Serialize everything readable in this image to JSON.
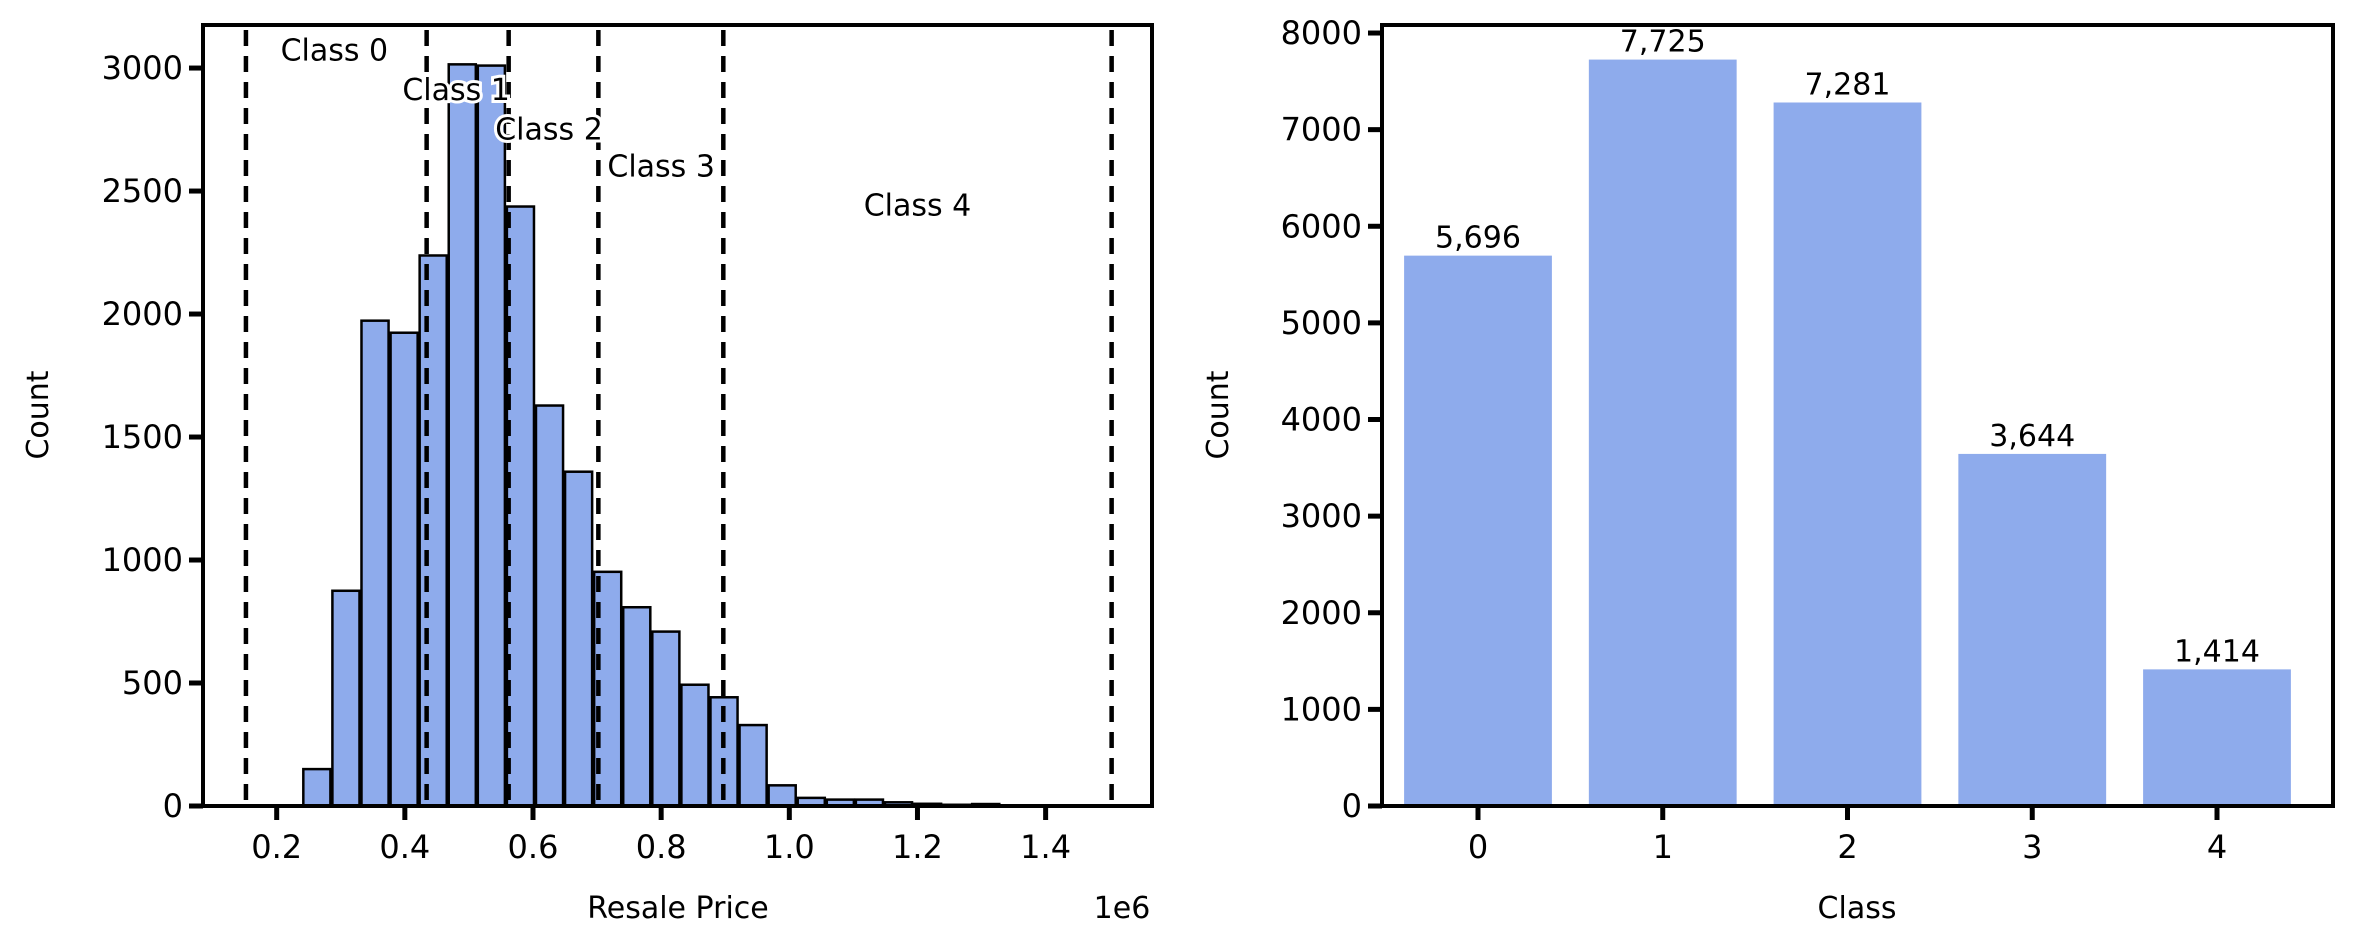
{
  "colors": {
    "bar": "#8eabec",
    "edge": "#000000",
    "vline": "#000000"
  },
  "chart_data": [
    {
      "type": "bar",
      "subtype": "histogram",
      "xlabel": "Resale Price",
      "ylabel": "Count",
      "x_offset_label": "1e6",
      "bin_range": [
        0.24,
        1.42
      ],
      "counts": [
        150,
        875,
        1973,
        1924,
        2238,
        3015,
        3010,
        2437,
        1628,
        1359,
        952,
        808,
        709,
        493,
        442,
        329,
        84,
        33,
        26,
        26,
        15,
        9,
        5,
        8,
        2,
        2
      ],
      "xlim": [
        0.085,
        1.566
      ],
      "ylim": [
        0,
        3175
      ],
      "xticks": [
        0.2,
        0.4,
        0.6,
        0.8,
        1.0,
        1.2,
        1.4
      ],
      "xtick_labels": [
        "0.2",
        "0.4",
        "0.6",
        "0.8",
        "1.0",
        "1.2",
        "1.4"
      ],
      "yticks": [
        0,
        500,
        1000,
        1500,
        2000,
        2500,
        3000
      ],
      "ytick_labels": [
        "0",
        "500",
        "1000",
        "1500",
        "2000",
        "2500",
        "3000"
      ],
      "vlines": [
        0.152,
        0.434,
        0.562,
        0.702,
        0.897,
        1.503
      ],
      "annotations": [
        "Class 0",
        "Class 1",
        "Class 2",
        "Class 3",
        "Class 4"
      ],
      "grid": false
    },
    {
      "type": "bar",
      "xlabel": "Class",
      "ylabel": "Count",
      "categories": [
        "0",
        "1",
        "2",
        "3",
        "4"
      ],
      "values": [
        5696,
        7725,
        7281,
        3644,
        1414
      ],
      "data_labels": [
        "5,696",
        "7,725",
        "7,281",
        "3,644",
        "1,414"
      ],
      "ylim": [
        0,
        8083
      ],
      "yticks": [
        0,
        1000,
        2000,
        3000,
        4000,
        5000,
        6000,
        7000,
        8000
      ],
      "ytick_labels": [
        "0",
        "1000",
        "2000",
        "3000",
        "4000",
        "5000",
        "6000",
        "7000",
        "8000"
      ],
      "grid": false
    }
  ]
}
